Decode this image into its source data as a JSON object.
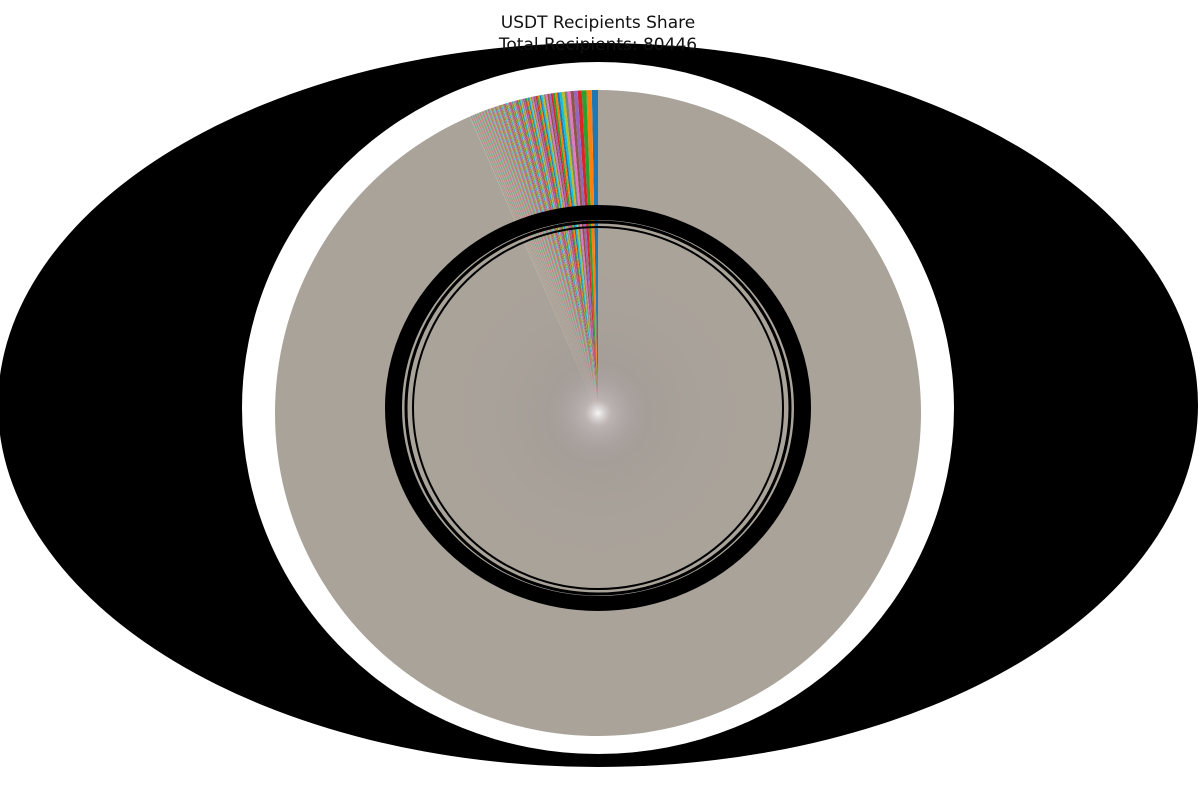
{
  "chart_data": {
    "type": "pie",
    "title": "USDT Recipients Share",
    "subtitle": "Total Recipients: 80446",
    "total_recipients": 80446,
    "labels_legible": false,
    "largest_slice_share_pct": 93.5,
    "other_slices_share_pct": 6.5,
    "other_slices_count_visible": 180,
    "colors": [
      "#1f77b4",
      "#ff7f0e",
      "#2ca02c",
      "#d62728",
      "#9467bd",
      "#8c564b",
      "#e377c2",
      "#7f7f7f",
      "#bcbd22",
      "#17becf"
    ],
    "largest_slice_color": "#aaa39a",
    "grid": false,
    "legend": "none"
  }
}
